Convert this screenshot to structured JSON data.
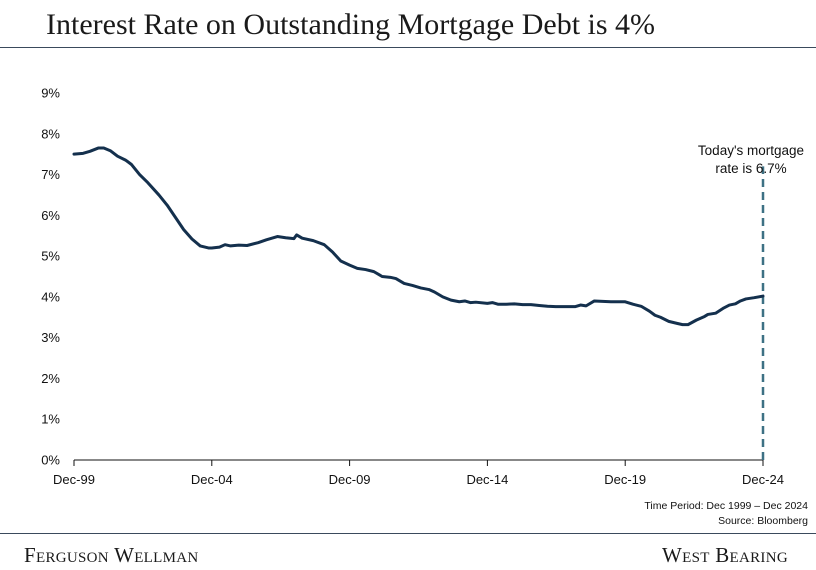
{
  "title": "Interest Rate on Outstanding Mortgage Debt is 4%",
  "colors": {
    "line": "#14304d",
    "dashed": "#3d7184",
    "rule": "#3a4a5c"
  },
  "footnotes": {
    "time_period": "Time Period: Dec 1999 – Dec 2024",
    "source": "Source: Bloomberg"
  },
  "footer": {
    "left": "Ferguson Wellman",
    "right": "West Bearing"
  },
  "chart_data": {
    "type": "line",
    "title": "Interest Rate on Outstanding Mortgage Debt is 4%",
    "xlabel": "",
    "ylabel": "",
    "xlim": [
      1999.92,
      2024.92
    ],
    "ylim": [
      0,
      9
    ],
    "x_ticks": [
      {
        "value": 1999.92,
        "label": "Dec-99"
      },
      {
        "value": 2004.92,
        "label": "Dec-04"
      },
      {
        "value": 2009.92,
        "label": "Dec-09"
      },
      {
        "value": 2014.92,
        "label": "Dec-14"
      },
      {
        "value": 2019.92,
        "label": "Dec-19"
      },
      {
        "value": 2024.92,
        "label": "Dec-24"
      }
    ],
    "y_ticks": [
      {
        "value": 0,
        "label": "0%"
      },
      {
        "value": 1,
        "label": "1%"
      },
      {
        "value": 2,
        "label": "2%"
      },
      {
        "value": 3,
        "label": "3%"
      },
      {
        "value": 4,
        "label": "4%"
      },
      {
        "value": 5,
        "label": "5%"
      },
      {
        "value": 6,
        "label": "6%"
      },
      {
        "value": 7,
        "label": "7%"
      },
      {
        "value": 8,
        "label": "8%"
      },
      {
        "value": 9,
        "label": "9%"
      }
    ],
    "grid": false,
    "series": [
      {
        "x": [
          1999.92,
          2000.25,
          2000.5,
          2000.8,
          2001.0,
          2001.25,
          2001.5,
          2001.8,
          2002.0,
          2002.3,
          2002.6,
          2003.0,
          2003.3,
          2003.6,
          2003.9,
          2004.2,
          2004.5,
          2004.8,
          2004.92,
          2005.2,
          2005.4,
          2005.6,
          2005.9,
          2006.2,
          2006.6,
          2006.9,
          2007.3,
          2007.6,
          2007.9,
          2008.0,
          2008.2,
          2008.6,
          2009.0,
          2009.3,
          2009.6,
          2009.92,
          2010.2,
          2010.5,
          2010.8,
          2011.1,
          2011.4,
          2011.6,
          2011.9,
          2012.2,
          2012.5,
          2012.8,
          2013.0,
          2013.3,
          2013.6,
          2013.9,
          2014.1,
          2014.3,
          2014.5,
          2014.92,
          2015.1,
          2015.3,
          2015.6,
          2015.9,
          2016.2,
          2016.5,
          2016.8,
          2017.1,
          2017.4,
          2017.7,
          2017.92,
          2018.1,
          2018.3,
          2018.5,
          2018.8,
          2019.1,
          2019.4,
          2019.6,
          2019.92,
          2020.2,
          2020.5,
          2020.8,
          2021.0,
          2021.2,
          2021.5,
          2021.8,
          2022.0,
          2022.2,
          2022.5,
          2022.8,
          2022.92,
          2023.2,
          2023.5,
          2023.7,
          2023.92,
          2024.1,
          2024.3,
          2024.6,
          2024.92
        ],
        "values": [
          7.5,
          7.52,
          7.57,
          7.65,
          7.65,
          7.58,
          7.45,
          7.35,
          7.25,
          7.0,
          6.8,
          6.5,
          6.25,
          5.95,
          5.65,
          5.42,
          5.25,
          5.2,
          5.2,
          5.22,
          5.28,
          5.25,
          5.27,
          5.26,
          5.33,
          5.4,
          5.48,
          5.45,
          5.43,
          5.52,
          5.44,
          5.38,
          5.28,
          5.1,
          4.88,
          4.78,
          4.7,
          4.67,
          4.62,
          4.5,
          4.48,
          4.45,
          4.33,
          4.28,
          4.22,
          4.18,
          4.12,
          4.0,
          3.92,
          3.88,
          3.9,
          3.86,
          3.87,
          3.84,
          3.86,
          3.82,
          3.82,
          3.83,
          3.81,
          3.81,
          3.79,
          3.77,
          3.76,
          3.76,
          3.76,
          3.76,
          3.8,
          3.78,
          3.9,
          3.89,
          3.88,
          3.88,
          3.88,
          3.82,
          3.77,
          3.65,
          3.55,
          3.5,
          3.4,
          3.35,
          3.32,
          3.32,
          3.43,
          3.52,
          3.57,
          3.6,
          3.73,
          3.8,
          3.83,
          3.9,
          3.95,
          3.98,
          4.02
        ]
      }
    ],
    "annotations": [
      {
        "x": 2024.92,
        "lines": [
          "Today's mortgage",
          "rate is 6.7%"
        ],
        "line_from": 0,
        "line_to": 7.2,
        "style": "dashed"
      }
    ]
  }
}
